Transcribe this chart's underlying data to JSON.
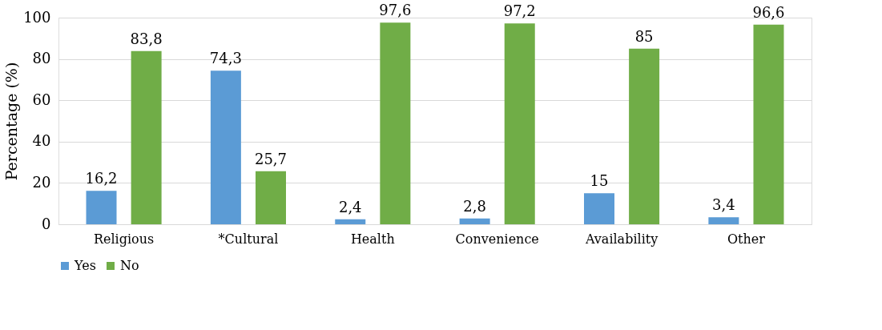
{
  "chart_data": {
    "type": "bar",
    "ylabel": "Percentage (%)",
    "categories": [
      "Religious",
      "*Cultural",
      "Health",
      "Convenience",
      "Availability",
      "Other"
    ],
    "series": [
      {
        "name": "Yes",
        "color": "#5b9bd5",
        "values": [
          16.2,
          74.3,
          2.4,
          2.8,
          15,
          3.4
        ],
        "value_labels": [
          "16,2",
          "74,3",
          "2,4",
          "2,8",
          "15",
          "3,4"
        ]
      },
      {
        "name": "No",
        "color": "#70ad47",
        "values": [
          83.8,
          25.7,
          97.6,
          97.2,
          85,
          96.6
        ],
        "value_labels": [
          "83,8",
          "25,7",
          "97,6",
          "97,2",
          "85",
          "96,6"
        ]
      }
    ],
    "ylim": [
      0,
      100
    ],
    "yticks": [
      0,
      20,
      40,
      60,
      80,
      100
    ],
    "grid": "y",
    "legend": "bottom"
  }
}
